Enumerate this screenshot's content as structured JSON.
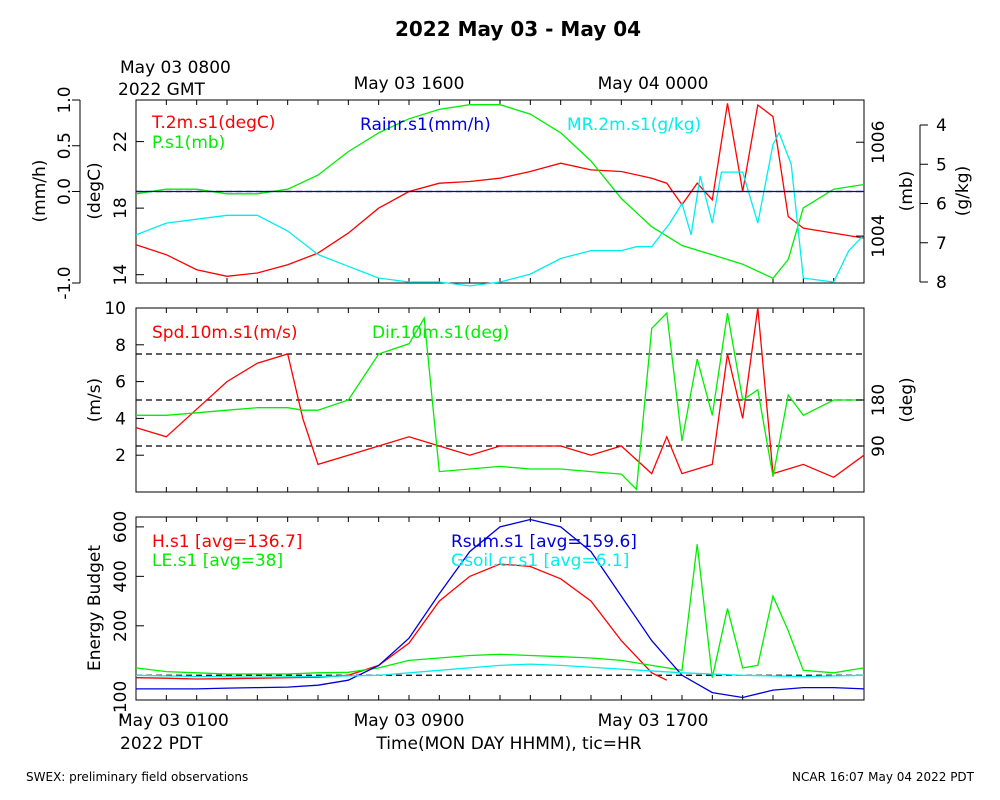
{
  "title": "2022 May 03 - May 04",
  "top_time_labels": {
    "gmt_line1": "May 03 0800",
    "gmt_line2": "2022 GMT",
    "mid": "May 03 1600",
    "right": "May 04 0000"
  },
  "bottom_time_labels": {
    "left_line1": "May 03 0100",
    "left_line2": "2022 PDT",
    "mid": "May 03 0900",
    "right": "May 03 1700",
    "axis_title": "Time(MON DAY HHMM), tic=HR"
  },
  "footer": {
    "left": "SWEX: preliminary field observations",
    "right": "NCAR 16:07 May 04 2022 PDT"
  },
  "colors": {
    "red": "#ff0000",
    "green": "#00ee00",
    "cyan": "#00eeee",
    "blue": "#0000dd",
    "black": "#000000"
  },
  "chart_data": [
    {
      "type": "line",
      "panel": "top",
      "x_unit": "hours since May 03 0100 PDT",
      "xlim": [
        0,
        24
      ],
      "axes": {
        "rain": {
          "label": "(mm/h)",
          "ticks": [
            "-1.0",
            "0.0",
            "0.5",
            "1.0"
          ],
          "ylim": [
            -1.0,
            1.0
          ]
        },
        "temp": {
          "label": "(degC)",
          "ticks": [
            "14",
            "18",
            "22"
          ],
          "ylim": [
            13.5,
            24.5
          ]
        },
        "pres": {
          "label": "(mb)",
          "ticks": [
            "1004",
            "1006"
          ],
          "ylim": [
            1003.0,
            1006.9
          ]
        },
        "mr": {
          "label": "(g/kg)",
          "ticks": [
            "4",
            "5",
            "6",
            "7",
            "8"
          ],
          "ylim": [
            4.0,
            8.0
          ]
        }
      },
      "series": [
        {
          "name": "T.2m.s1(degC)",
          "color": "red",
          "axis": "temp",
          "x": [
            0,
            1,
            2,
            3,
            4,
            5,
            6,
            7,
            8,
            9,
            10,
            11,
            12,
            13,
            14,
            15,
            16,
            17,
            17.5,
            18,
            18.5,
            19,
            19.5,
            20,
            20.5,
            21,
            21.5,
            22,
            23,
            24
          ],
          "y": [
            15.8,
            15.2,
            14.3,
            13.9,
            14.1,
            14.6,
            15.3,
            16.5,
            18.0,
            19.0,
            19.5,
            19.6,
            19.8,
            20.2,
            20.7,
            20.3,
            20.2,
            19.8,
            19.5,
            18.2,
            19.5,
            18.5,
            24.3,
            19.0,
            24.2,
            23.5,
            17.5,
            16.8,
            16.5,
            16.2
          ]
        },
        {
          "name": "P.s1(mb)",
          "color": "green",
          "axis": "pres",
          "x": [
            0,
            1,
            2,
            3,
            4,
            5,
            6,
            7,
            8,
            9,
            10,
            11,
            12,
            13,
            14,
            15,
            16,
            17,
            18,
            19,
            20,
            21,
            21.5,
            22,
            23,
            24
          ],
          "y": [
            1004.9,
            1005.0,
            1005.0,
            1004.9,
            1004.9,
            1005.0,
            1005.3,
            1005.8,
            1006.2,
            1006.5,
            1006.7,
            1006.8,
            1006.8,
            1006.6,
            1006.2,
            1005.6,
            1004.8,
            1004.2,
            1003.8,
            1003.6,
            1003.4,
            1003.1,
            1003.5,
            1004.6,
            1005.0,
            1005.1
          ]
        },
        {
          "name": "MR.2m.s1(g/kg)",
          "color": "cyan",
          "axis": "mr",
          "x": [
            0,
            1,
            2,
            3,
            4,
            5,
            6,
            7,
            8,
            9,
            10,
            11,
            12,
            13,
            14,
            15,
            16,
            16.5,
            17,
            17.3,
            17.6,
            18,
            18.3,
            18.6,
            19,
            19.3,
            20,
            20.5,
            21,
            21.2,
            21.6,
            22,
            23,
            23.5,
            24
          ],
          "y": [
            6.8,
            6.5,
            6.4,
            6.3,
            6.3,
            6.7,
            7.3,
            7.6,
            7.9,
            8.0,
            8.0,
            8.1,
            8.0,
            7.8,
            7.4,
            7.2,
            7.2,
            7.1,
            7.1,
            6.8,
            6.5,
            6.0,
            6.8,
            5.3,
            6.5,
            5.2,
            5.2,
            6.5,
            4.5,
            4.2,
            5.0,
            7.9,
            8.0,
            7.2,
            6.8
          ]
        },
        {
          "name": "Rainr.s1(mm/h)",
          "color": "blue",
          "axis": "rain",
          "x": [
            0,
            24
          ],
          "y": [
            0.0,
            0.0
          ]
        }
      ]
    },
    {
      "type": "line",
      "panel": "middle",
      "x_unit": "hours since May 03 0100 PDT",
      "xlim": [
        0,
        24
      ],
      "axes": {
        "speed": {
          "label": "(m/s)",
          "ticks": [
            "2",
            "4",
            "6",
            "8",
            "10"
          ],
          "ylim": [
            0,
            10
          ]
        },
        "dir": {
          "label": "(deg)",
          "ticks": [
            "90",
            "180"
          ],
          "ylim": [
            0,
            360
          ]
        }
      },
      "reference_lines_deg": [
        90,
        180,
        270
      ],
      "series": [
        {
          "name": "Spd.10m.s1(m/s)",
          "color": "red",
          "axis": "speed",
          "x": [
            0,
            1,
            2,
            3,
            4,
            5,
            5.5,
            6,
            7,
            8,
            9,
            10,
            11,
            12,
            13,
            14,
            15,
            16,
            17,
            17.5,
            18,
            19,
            19.5,
            20,
            20.5,
            21,
            22,
            23,
            24
          ],
          "y": [
            3.5,
            3.0,
            4.5,
            6.0,
            7.0,
            7.5,
            4.0,
            1.5,
            2.0,
            2.5,
            3.0,
            2.5,
            2.0,
            2.5,
            2.5,
            2.5,
            2.0,
            2.5,
            1.0,
            3.0,
            1.0,
            1.5,
            7.5,
            4.0,
            10.0,
            1.0,
            1.5,
            0.8,
            2.0
          ]
        },
        {
          "name": "Dir.10m.s1(deg)",
          "color": "green",
          "axis": "dir",
          "x": [
            0,
            1,
            2,
            3,
            4,
            5,
            5.5,
            6,
            7,
            8,
            9,
            9.5,
            10,
            11,
            12,
            13,
            14,
            15,
            16,
            16.5,
            17,
            17.5,
            18,
            18.5,
            19,
            19.5,
            20,
            20.5,
            21,
            21.5,
            22,
            23,
            24
          ],
          "y": [
            150,
            150,
            155,
            160,
            165,
            165,
            160,
            160,
            180,
            270,
            290,
            340,
            40,
            45,
            50,
            45,
            45,
            40,
            35,
            5,
            320,
            350,
            100,
            260,
            150,
            350,
            180,
            200,
            30,
            190,
            150,
            180,
            180
          ]
        }
      ]
    },
    {
      "type": "line",
      "panel": "bottom",
      "x_unit": "hours since May 03 0100 PDT",
      "xlim": [
        0,
        24
      ],
      "ylabel": "Energy Budget",
      "ticks": [
        "-100",
        "200",
        "400",
        "600"
      ],
      "ylim": [
        -100,
        640
      ],
      "reference_lines": [
        0
      ],
      "series": [
        {
          "name": "H.s1 [avg=136.7]",
          "color": "red",
          "x": [
            0,
            1,
            2,
            3,
            4,
            5,
            6,
            7,
            8,
            9,
            10,
            11,
            12,
            13,
            14,
            15,
            16,
            17,
            17.5
          ],
          "y": [
            -10,
            -12,
            -15,
            -14,
            -12,
            -10,
            -8,
            0,
            40,
            130,
            300,
            400,
            450,
            440,
            390,
            300,
            140,
            10,
            -20
          ]
        },
        {
          "name": "LE.s1 [avg=38]",
          "color": "green",
          "x": [
            0,
            1,
            2,
            3,
            4,
            5,
            6,
            7,
            8,
            9,
            10,
            11,
            12,
            13,
            14,
            15,
            16,
            17,
            18,
            18.5,
            19,
            19.5,
            20,
            20.5,
            21,
            21.5,
            22,
            23,
            24
          ],
          "y": [
            30,
            15,
            10,
            5,
            5,
            5,
            10,
            12,
            30,
            60,
            70,
            80,
            85,
            80,
            75,
            70,
            60,
            40,
            20,
            530,
            -10,
            270,
            30,
            40,
            320,
            180,
            20,
            10,
            30
          ]
        },
        {
          "name": "Rsum.s1 [avg=159.6]",
          "color": "blue",
          "x": [
            0,
            1,
            2,
            3,
            4,
            5,
            6,
            7,
            8,
            9,
            10,
            11,
            12,
            13,
            14,
            15,
            16,
            17,
            18,
            19,
            20,
            21,
            22,
            23,
            24
          ],
          "y": [
            -55,
            -55,
            -55,
            -52,
            -50,
            -48,
            -40,
            -20,
            40,
            150,
            330,
            500,
            600,
            630,
            600,
            500,
            320,
            140,
            0,
            -70,
            -90,
            -60,
            -50,
            -50,
            -55
          ]
        },
        {
          "name": "Gsoil.cr.s1 [avg=6.1]",
          "color": "cyan",
          "x": [
            0,
            2,
            4,
            6,
            8,
            10,
            12,
            13,
            14,
            16,
            18,
            20,
            22,
            24
          ],
          "y": [
            0,
            -5,
            -8,
            -5,
            0,
            20,
            40,
            45,
            40,
            25,
            10,
            0,
            -5,
            0
          ]
        }
      ]
    }
  ]
}
